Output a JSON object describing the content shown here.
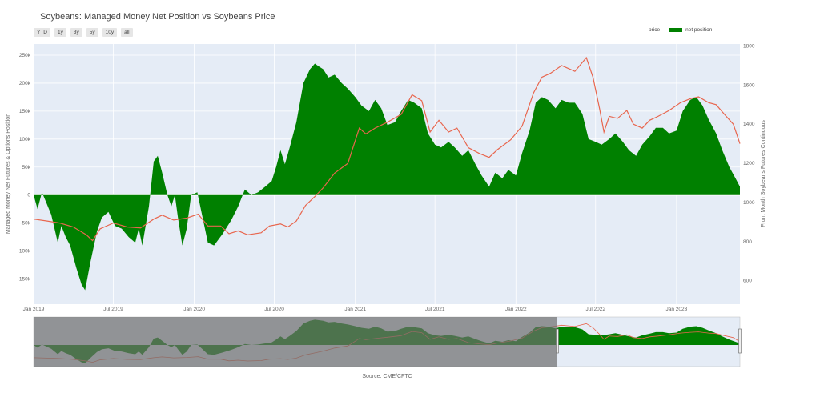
{
  "header": {
    "title": "Soybeans: Managed Money Net Position vs Soybeans Price",
    "range_buttons": [
      "YTD",
      "1y",
      "3y",
      "5y",
      "10y",
      "all"
    ]
  },
  "legend": {
    "price_label": "price",
    "net_label": "net position"
  },
  "footer": {
    "source": "Source: CME/CFTC"
  },
  "colors": {
    "net": "#008000",
    "price": "#e8664e",
    "plot_bg": "#e5ecf6",
    "grid": "#ffffff",
    "mask": "#6e6e6e"
  },
  "chart_data": {
    "type": "area",
    "x_ticks": [
      "Jan 2019",
      "Jul 2019",
      "Jan 2020",
      "Jul 2020",
      "Jan 2021",
      "Jul 2021",
      "Jan 2022",
      "Jul 2022",
      "Jan 2023"
    ],
    "xlim": [
      "2019-01-01",
      "2023-05-25"
    ],
    "y_left": {
      "label": "Managed Money Net Futures & Options Position",
      "range": [
        -195000,
        270000
      ],
      "ticks": [
        -150000,
        -100000,
        -50000,
        0,
        50000,
        100000,
        150000,
        200000,
        250000
      ],
      "tick_labels": [
        "-150k",
        "-100k",
        "-50k",
        "0",
        "50k",
        "100k",
        "150k",
        "200k",
        "250k"
      ]
    },
    "y_right": {
      "label": "Front Month Soybeans Futures Continuous",
      "range": [
        480,
        1810
      ],
      "ticks": [
        600,
        800,
        1000,
        1200,
        1400,
        1600,
        1800
      ],
      "tick_labels": [
        "600",
        "800",
        "1000",
        "1200",
        "1400",
        "1600",
        "1800"
      ]
    },
    "series": [
      {
        "name": "net position",
        "axis": "left",
        "points": [
          [
            "2019-01-01",
            0
          ],
          [
            "2019-01-10",
            -25000
          ],
          [
            "2019-01-20",
            5000
          ],
          [
            "2019-01-28",
            -10000
          ],
          [
            "2019-02-10",
            -35000
          ],
          [
            "2019-02-25",
            -85000
          ],
          [
            "2019-03-05",
            -55000
          ],
          [
            "2019-03-15",
            -75000
          ],
          [
            "2019-03-25",
            -90000
          ],
          [
            "2019-04-08",
            -130000
          ],
          [
            "2019-04-20",
            -160000
          ],
          [
            "2019-04-28",
            -170000
          ],
          [
            "2019-05-10",
            -120000
          ],
          [
            "2019-05-25",
            -65000
          ],
          [
            "2019-06-05",
            -40000
          ],
          [
            "2019-06-20",
            -30000
          ],
          [
            "2019-07-05",
            -55000
          ],
          [
            "2019-07-20",
            -60000
          ],
          [
            "2019-08-05",
            -75000
          ],
          [
            "2019-08-20",
            -85000
          ],
          [
            "2019-08-28",
            -60000
          ],
          [
            "2019-09-05",
            -90000
          ],
          [
            "2019-09-20",
            -20000
          ],
          [
            "2019-10-01",
            60000
          ],
          [
            "2019-10-10",
            70000
          ],
          [
            "2019-10-20",
            40000
          ],
          [
            "2019-11-01",
            0
          ],
          [
            "2019-11-10",
            -20000
          ],
          [
            "2019-11-18",
            0
          ],
          [
            "2019-11-25",
            -40000
          ],
          [
            "2019-12-05",
            -90000
          ],
          [
            "2019-12-15",
            -60000
          ],
          [
            "2019-12-25",
            0
          ],
          [
            "2020-01-08",
            5000
          ],
          [
            "2020-01-20",
            -40000
          ],
          [
            "2020-02-01",
            -85000
          ],
          [
            "2020-02-15",
            -90000
          ],
          [
            "2020-03-05",
            -70000
          ],
          [
            "2020-03-25",
            -45000
          ],
          [
            "2020-04-10",
            -20000
          ],
          [
            "2020-04-25",
            10000
          ],
          [
            "2020-05-10",
            0
          ],
          [
            "2020-05-25",
            5000
          ],
          [
            "2020-06-10",
            15000
          ],
          [
            "2020-06-25",
            25000
          ],
          [
            "2020-07-05",
            50000
          ],
          [
            "2020-07-15",
            80000
          ],
          [
            "2020-07-25",
            55000
          ],
          [
            "2020-08-05",
            85000
          ],
          [
            "2020-08-20",
            130000
          ],
          [
            "2020-09-05",
            200000
          ],
          [
            "2020-09-20",
            225000
          ],
          [
            "2020-10-01",
            235000
          ],
          [
            "2020-10-10",
            230000
          ],
          [
            "2020-10-20",
            225000
          ],
          [
            "2020-11-01",
            210000
          ],
          [
            "2020-11-15",
            215000
          ],
          [
            "2020-12-01",
            200000
          ],
          [
            "2020-12-15",
            190000
          ],
          [
            "2021-01-01",
            175000
          ],
          [
            "2021-01-15",
            160000
          ],
          [
            "2021-02-01",
            150000
          ],
          [
            "2021-02-15",
            170000
          ],
          [
            "2021-03-01",
            155000
          ],
          [
            "2021-03-15",
            125000
          ],
          [
            "2021-04-01",
            130000
          ],
          [
            "2021-04-15",
            150000
          ],
          [
            "2021-05-01",
            170000
          ],
          [
            "2021-05-15",
            165000
          ],
          [
            "2021-06-01",
            155000
          ],
          [
            "2021-06-15",
            110000
          ],
          [
            "2021-07-01",
            90000
          ],
          [
            "2021-07-15",
            85000
          ],
          [
            "2021-08-01",
            95000
          ],
          [
            "2021-08-15",
            85000
          ],
          [
            "2021-09-01",
            70000
          ],
          [
            "2021-09-15",
            80000
          ],
          [
            "2021-10-01",
            55000
          ],
          [
            "2021-10-15",
            35000
          ],
          [
            "2021-11-01",
            15000
          ],
          [
            "2021-11-15",
            40000
          ],
          [
            "2021-12-01",
            30000
          ],
          [
            "2021-12-15",
            45000
          ],
          [
            "2022-01-01",
            35000
          ],
          [
            "2022-01-15",
            75000
          ],
          [
            "2022-02-01",
            115000
          ],
          [
            "2022-02-15",
            165000
          ],
          [
            "2022-03-01",
            175000
          ],
          [
            "2022-03-15",
            170000
          ],
          [
            "2022-04-01",
            155000
          ],
          [
            "2022-04-15",
            170000
          ],
          [
            "2022-05-01",
            165000
          ],
          [
            "2022-05-15",
            165000
          ],
          [
            "2022-06-01",
            145000
          ],
          [
            "2022-06-15",
            100000
          ],
          [
            "2022-07-01",
            95000
          ],
          [
            "2022-07-15",
            90000
          ],
          [
            "2022-08-01",
            100000
          ],
          [
            "2022-08-15",
            110000
          ],
          [
            "2022-09-01",
            95000
          ],
          [
            "2022-09-15",
            80000
          ],
          [
            "2022-10-01",
            70000
          ],
          [
            "2022-10-15",
            90000
          ],
          [
            "2022-11-01",
            105000
          ],
          [
            "2022-11-15",
            120000
          ],
          [
            "2022-12-01",
            120000
          ],
          [
            "2022-12-15",
            110000
          ],
          [
            "2023-01-01",
            115000
          ],
          [
            "2023-01-15",
            150000
          ],
          [
            "2023-02-01",
            170000
          ],
          [
            "2023-02-15",
            175000
          ],
          [
            "2023-03-01",
            160000
          ],
          [
            "2023-03-15",
            135000
          ],
          [
            "2023-04-01",
            110000
          ],
          [
            "2023-04-15",
            80000
          ],
          [
            "2023-05-01",
            50000
          ],
          [
            "2023-05-15",
            30000
          ],
          [
            "2023-05-25",
            15000
          ]
        ]
      },
      {
        "name": "price",
        "axis": "right",
        "points": [
          [
            "2019-01-01",
            915
          ],
          [
            "2019-02-01",
            905
          ],
          [
            "2019-03-01",
            895
          ],
          [
            "2019-04-01",
            875
          ],
          [
            "2019-05-01",
            835
          ],
          [
            "2019-05-15",
            805
          ],
          [
            "2019-06-01",
            865
          ],
          [
            "2019-07-01",
            895
          ],
          [
            "2019-08-01",
            875
          ],
          [
            "2019-09-01",
            870
          ],
          [
            "2019-10-01",
            915
          ],
          [
            "2019-10-20",
            935
          ],
          [
            "2019-11-15",
            910
          ],
          [
            "2019-12-15",
            920
          ],
          [
            "2020-01-10",
            940
          ],
          [
            "2020-02-01",
            880
          ],
          [
            "2020-03-01",
            880
          ],
          [
            "2020-03-20",
            840
          ],
          [
            "2020-04-10",
            855
          ],
          [
            "2020-05-01",
            835
          ],
          [
            "2020-06-01",
            845
          ],
          [
            "2020-06-20",
            880
          ],
          [
            "2020-07-15",
            890
          ],
          [
            "2020-08-01",
            875
          ],
          [
            "2020-08-20",
            905
          ],
          [
            "2020-09-10",
            985
          ],
          [
            "2020-10-01",
            1030
          ],
          [
            "2020-10-20",
            1075
          ],
          [
            "2020-11-15",
            1150
          ],
          [
            "2020-12-15",
            1200
          ],
          [
            "2021-01-10",
            1380
          ],
          [
            "2021-01-25",
            1350
          ],
          [
            "2021-02-15",
            1380
          ],
          [
            "2021-03-15",
            1410
          ],
          [
            "2021-04-15",
            1450
          ],
          [
            "2021-05-10",
            1550
          ],
          [
            "2021-06-01",
            1520
          ],
          [
            "2021-06-20",
            1360
          ],
          [
            "2021-07-10",
            1420
          ],
          [
            "2021-08-01",
            1360
          ],
          [
            "2021-08-20",
            1380
          ],
          [
            "2021-09-15",
            1280
          ],
          [
            "2021-10-10",
            1250
          ],
          [
            "2021-11-01",
            1230
          ],
          [
            "2021-11-20",
            1270
          ],
          [
            "2021-12-20",
            1320
          ],
          [
            "2022-01-15",
            1390
          ],
          [
            "2022-02-10",
            1560
          ],
          [
            "2022-03-01",
            1640
          ],
          [
            "2022-03-20",
            1660
          ],
          [
            "2022-04-15",
            1700
          ],
          [
            "2022-05-15",
            1670
          ],
          [
            "2022-06-10",
            1740
          ],
          [
            "2022-06-25",
            1640
          ],
          [
            "2022-07-10",
            1480
          ],
          [
            "2022-07-20",
            1360
          ],
          [
            "2022-08-01",
            1440
          ],
          [
            "2022-08-20",
            1430
          ],
          [
            "2022-09-10",
            1470
          ],
          [
            "2022-09-25",
            1400
          ],
          [
            "2022-10-15",
            1380
          ],
          [
            "2022-11-01",
            1420
          ],
          [
            "2022-11-20",
            1440
          ],
          [
            "2022-12-15",
            1470
          ],
          [
            "2023-01-10",
            1510
          ],
          [
            "2023-02-01",
            1530
          ],
          [
            "2023-02-20",
            1540
          ],
          [
            "2023-03-15",
            1510
          ],
          [
            "2023-04-01",
            1500
          ],
          [
            "2023-04-20",
            1450
          ],
          [
            "2023-05-10",
            1400
          ],
          [
            "2023-05-25",
            1300
          ]
        ]
      }
    ],
    "range_selector": {
      "selected": [
        "2019-01-01",
        "2023-05-25"
      ]
    },
    "grid": true,
    "legend_position": "top-right"
  }
}
